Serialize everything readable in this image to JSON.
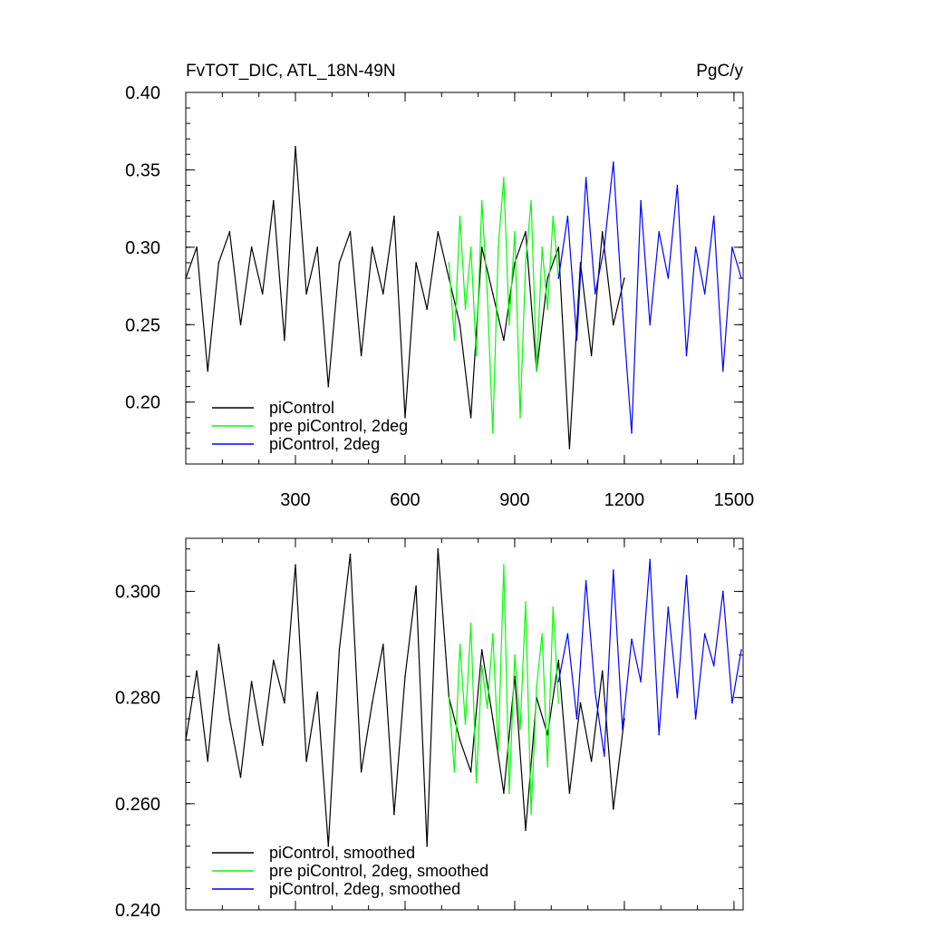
{
  "chart_data": [
    {
      "type": "line",
      "title_left": "FvTOT_DIC, ATL_18N-49N",
      "title_right": "PgC/y",
      "xlim": [
        0,
        1525
      ],
      "ylim": [
        0.16,
        0.4
      ],
      "x_ticks": [
        300,
        600,
        900,
        1200,
        1500
      ],
      "x_tick_labels": [
        "300",
        "600",
        "900",
        "1200",
        "1500"
      ],
      "y_ticks": [
        0.2,
        0.25,
        0.3,
        0.35,
        0.4
      ],
      "y_tick_labels": [
        "0.20",
        "0.25",
        "0.30",
        "0.35",
        "0.40"
      ],
      "legend_position": "bottom-left",
      "series": [
        {
          "name": "piControl",
          "color": "#000000",
          "x": [
            0,
            30,
            60,
            90,
            120,
            150,
            180,
            210,
            240,
            270,
            300,
            330,
            360,
            390,
            420,
            450,
            480,
            510,
            540,
            570,
            600,
            630,
            660,
            690,
            720,
            750,
            780,
            810,
            840,
            870,
            900,
            930,
            960,
            990,
            1020,
            1050,
            1080,
            1110,
            1140,
            1170,
            1200
          ],
          "y": [
            0.28,
            0.3,
            0.22,
            0.29,
            0.31,
            0.25,
            0.3,
            0.27,
            0.33,
            0.24,
            0.365,
            0.27,
            0.3,
            0.21,
            0.29,
            0.31,
            0.23,
            0.3,
            0.27,
            0.32,
            0.19,
            0.29,
            0.26,
            0.31,
            0.28,
            0.25,
            0.19,
            0.3,
            0.27,
            0.24,
            0.29,
            0.31,
            0.22,
            0.28,
            0.3,
            0.17,
            0.29,
            0.23,
            0.31,
            0.25,
            0.28
          ]
        },
        {
          "name": "pre piControl, 2deg",
          "color": "#00ff00",
          "x": [
            720,
            735,
            750,
            765,
            780,
            795,
            810,
            825,
            840,
            855,
            870,
            885,
            900,
            915,
            930,
            945,
            960,
            975,
            990,
            1005,
            1020
          ],
          "y": [
            0.29,
            0.24,
            0.32,
            0.26,
            0.3,
            0.23,
            0.33,
            0.27,
            0.18,
            0.3,
            0.345,
            0.25,
            0.31,
            0.19,
            0.29,
            0.33,
            0.22,
            0.3,
            0.26,
            0.32,
            0.28
          ]
        },
        {
          "name": "piControl, 2deg",
          "color": "#0000ff",
          "x": [
            1020,
            1045,
            1070,
            1095,
            1120,
            1145,
            1170,
            1195,
            1220,
            1245,
            1270,
            1295,
            1320,
            1345,
            1370,
            1395,
            1420,
            1445,
            1470,
            1495,
            1520
          ],
          "y": [
            0.28,
            0.32,
            0.24,
            0.345,
            0.27,
            0.3,
            0.355,
            0.26,
            0.18,
            0.33,
            0.25,
            0.31,
            0.28,
            0.34,
            0.23,
            0.3,
            0.27,
            0.32,
            0.22,
            0.3,
            0.28
          ]
        }
      ]
    },
    {
      "type": "line",
      "xlim": [
        0,
        1525
      ],
      "ylim": [
        0.24,
        0.31
      ],
      "x_ticks": [
        300,
        600,
        900,
        1200,
        1500
      ],
      "y_ticks": [
        0.24,
        0.26,
        0.28,
        0.3
      ],
      "y_tick_labels": [
        "0.240",
        "0.260",
        "0.280",
        "0.300"
      ],
      "legend_position": "bottom-left",
      "series": [
        {
          "name": "piControl, smoothed",
          "color": "#000000",
          "x": [
            0,
            30,
            60,
            90,
            120,
            150,
            180,
            210,
            240,
            270,
            300,
            330,
            360,
            390,
            420,
            450,
            480,
            510,
            540,
            570,
            600,
            630,
            660,
            690,
            720,
            750,
            780,
            810,
            840,
            870,
            900,
            930,
            960,
            990,
            1020,
            1050,
            1080,
            1110,
            1140,
            1170,
            1200
          ],
          "y": [
            0.272,
            0.285,
            0.268,
            0.29,
            0.276,
            0.265,
            0.283,
            0.271,
            0.287,
            0.279,
            0.305,
            0.268,
            0.281,
            0.252,
            0.289,
            0.307,
            0.266,
            0.279,
            0.29,
            0.258,
            0.284,
            0.301,
            0.252,
            0.308,
            0.28,
            0.272,
            0.266,
            0.289,
            0.276,
            0.262,
            0.284,
            0.255,
            0.28,
            0.273,
            0.287,
            0.262,
            0.279,
            0.268,
            0.285,
            0.259,
            0.276
          ]
        },
        {
          "name": "pre piControl, 2deg, smoothed",
          "color": "#00ff00",
          "x": [
            720,
            735,
            750,
            765,
            780,
            795,
            810,
            825,
            840,
            855,
            870,
            885,
            900,
            915,
            930,
            945,
            960,
            975,
            990,
            1005,
            1020
          ],
          "y": [
            0.28,
            0.266,
            0.29,
            0.275,
            0.294,
            0.264,
            0.286,
            0.278,
            0.292,
            0.27,
            0.305,
            0.262,
            0.288,
            0.274,
            0.298,
            0.258,
            0.282,
            0.292,
            0.267,
            0.297,
            0.279
          ]
        },
        {
          "name": "piControl, 2deg, smoothed",
          "color": "#0000ff",
          "x": [
            1020,
            1045,
            1070,
            1095,
            1120,
            1145,
            1170,
            1195,
            1220,
            1245,
            1270,
            1295,
            1320,
            1345,
            1370,
            1395,
            1420,
            1445,
            1470,
            1495,
            1520
          ],
          "y": [
            0.283,
            0.292,
            0.276,
            0.302,
            0.281,
            0.269,
            0.304,
            0.274,
            0.291,
            0.283,
            0.306,
            0.273,
            0.297,
            0.28,
            0.303,
            0.276,
            0.292,
            0.286,
            0.3,
            0.279,
            0.289
          ]
        }
      ]
    }
  ]
}
